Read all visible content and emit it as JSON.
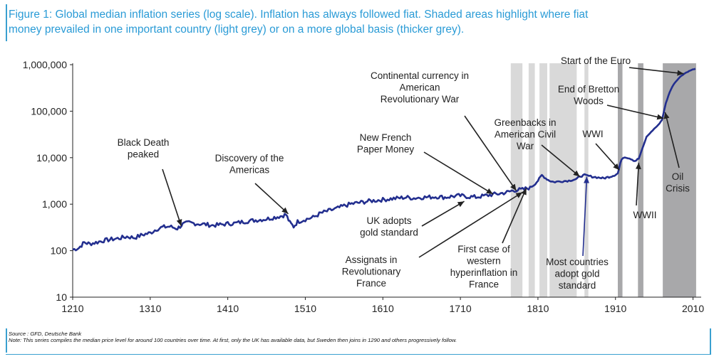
{
  "figure": {
    "title_line1": "Figure 1: Global median inflation series (log scale). Inflation has always followed fiat. Shaded areas highlight where fiat",
    "title_line2": "money prevailed in one important country (light grey) or on a more global basis (thicker grey).",
    "source": "Source : GFD, Deutsche Bank",
    "note": "Note: This series compiles the median price level for around 100 countries over time. At first, only the UK has available data, but Sweden then joins in 1290 and others progressively follow."
  },
  "colors": {
    "series": "#232f8f",
    "shade_light": "#d9d9d9",
    "shade_dark": "#a8a8aa",
    "title": "#2a9bd6",
    "rule": "#3aa0d0"
  },
  "chart_data": {
    "type": "line",
    "title": "",
    "xlabel": "",
    "ylabel": "",
    "xlim": [
      1210,
      2015
    ],
    "ylim": [
      10,
      1000000
    ],
    "yscale": "log",
    "grid": false,
    "x_ticks": [
      1210,
      1310,
      1410,
      1510,
      1610,
      1710,
      1810,
      1910,
      2010
    ],
    "y_ticks": [
      10,
      100,
      1000,
      10000,
      100000,
      1000000
    ],
    "y_tick_labels": [
      "10",
      "100",
      "1,000",
      "10,000",
      "100,000",
      "1,000,000"
    ],
    "shaded_periods": [
      {
        "start": 1775,
        "end": 1790,
        "shade": "light"
      },
      {
        "start": 1798,
        "end": 1806,
        "shade": "light"
      },
      {
        "start": 1812,
        "end": 1822,
        "shade": "light"
      },
      {
        "start": 1825,
        "end": 1860,
        "shade": "light"
      },
      {
        "start": 1870,
        "end": 1875,
        "shade": "light"
      },
      {
        "start": 1913,
        "end": 1919,
        "shade": "dark"
      },
      {
        "start": 1939,
        "end": 1946,
        "shade": "dark"
      },
      {
        "start": 1971,
        "end": 2014,
        "shade": "dark"
      }
    ],
    "series": [
      {
        "points": [
          [
            1210,
            105
          ],
          [
            1218,
            115
          ],
          [
            1225,
            150
          ],
          [
            1232,
            140
          ],
          [
            1240,
            150
          ],
          [
            1250,
            165
          ],
          [
            1260,
            175
          ],
          [
            1270,
            185
          ],
          [
            1280,
            200
          ],
          [
            1290,
            190
          ],
          [
            1300,
            220
          ],
          [
            1310,
            240
          ],
          [
            1318,
            290
          ],
          [
            1326,
            320
          ],
          [
            1335,
            330
          ],
          [
            1345,
            300
          ],
          [
            1352,
            370
          ],
          [
            1360,
            400
          ],
          [
            1370,
            380
          ],
          [
            1380,
            370
          ],
          [
            1390,
            350
          ],
          [
            1400,
            360
          ],
          [
            1410,
            380
          ],
          [
            1420,
            390
          ],
          [
            1430,
            420
          ],
          [
            1440,
            440
          ],
          [
            1450,
            460
          ],
          [
            1460,
            480
          ],
          [
            1470,
            520
          ],
          [
            1480,
            560
          ],
          [
            1485,
            600
          ],
          [
            1490,
            400
          ],
          [
            1495,
            330
          ],
          [
            1500,
            420
          ],
          [
            1510,
            470
          ],
          [
            1520,
            520
          ],
          [
            1530,
            640
          ],
          [
            1540,
            720
          ],
          [
            1550,
            800
          ],
          [
            1560,
            920
          ],
          [
            1570,
            1020
          ],
          [
            1580,
            1080
          ],
          [
            1590,
            1150
          ],
          [
            1600,
            1200
          ],
          [
            1610,
            1250
          ],
          [
            1620,
            1300
          ],
          [
            1630,
            1350
          ],
          [
            1640,
            1400
          ],
          [
            1650,
            1350
          ],
          [
            1660,
            1400
          ],
          [
            1670,
            1420
          ],
          [
            1680,
            1450
          ],
          [
            1690,
            1400
          ],
          [
            1700,
            1480
          ],
          [
            1710,
            1520
          ],
          [
            1720,
            1450
          ],
          [
            1730,
            1420
          ],
          [
            1740,
            1500
          ],
          [
            1750,
            1600
          ],
          [
            1760,
            1680
          ],
          [
            1770,
            1800
          ],
          [
            1775,
            1900
          ],
          [
            1780,
            2000
          ],
          [
            1790,
            2050
          ],
          [
            1800,
            2300
          ],
          [
            1805,
            2600
          ],
          [
            1810,
            3200
          ],
          [
            1815,
            4200
          ],
          [
            1820,
            3600
          ],
          [
            1825,
            3200
          ],
          [
            1830,
            3000
          ],
          [
            1840,
            3100
          ],
          [
            1850,
            3200
          ],
          [
            1860,
            3500
          ],
          [
            1865,
            4000
          ],
          [
            1870,
            4200
          ],
          [
            1880,
            3900
          ],
          [
            1890,
            3700
          ],
          [
            1895,
            3600
          ],
          [
            1900,
            3800
          ],
          [
            1905,
            4000
          ],
          [
            1910,
            4300
          ],
          [
            1913,
            4600
          ],
          [
            1918,
            9500
          ],
          [
            1922,
            10500
          ],
          [
            1930,
            9500
          ],
          [
            1935,
            8500
          ],
          [
            1940,
            9500
          ],
          [
            1946,
            18000
          ],
          [
            1950,
            28000
          ],
          [
            1960,
            42000
          ],
          [
            1965,
            50000
          ],
          [
            1970,
            65000
          ],
          [
            1975,
            150000
          ],
          [
            1980,
            260000
          ],
          [
            1985,
            380000
          ],
          [
            1990,
            480000
          ],
          [
            1995,
            580000
          ],
          [
            2000,
            660000
          ],
          [
            2005,
            730000
          ],
          [
            2010,
            790000
          ],
          [
            2013,
            820000
          ]
        ]
      }
    ],
    "annotations": [
      {
        "id": "black-death",
        "lines": [
          "Black Death",
          "peaked"
        ],
        "arrow_to": [
          1350,
          340
        ]
      },
      {
        "id": "americas",
        "lines": [
          "Discovery of the",
          "Americas"
        ],
        "arrow_to": [
          1488,
          620
        ]
      },
      {
        "id": "continental",
        "lines": [
          "Continental currency in",
          "American",
          "Revolutionary War"
        ],
        "arrow_to": [
          1782,
          1950
        ]
      },
      {
        "id": "new-french",
        "lines": [
          "New French",
          "Paper Money"
        ],
        "arrow_to": [
          1752,
          1650
        ]
      },
      {
        "id": "greenbacks",
        "lines": [
          "Greenbacks in",
          "American Civil",
          "War"
        ],
        "arrow_to": [
          1864,
          3900
        ]
      },
      {
        "id": "wwi",
        "lines": [
          "WWI"
        ],
        "arrow_to": [
          1915,
          5400
        ]
      },
      {
        "id": "bretton",
        "lines": [
          "End of Bretton",
          "Woods"
        ],
        "arrow_to": [
          1972,
          70000
        ]
      },
      {
        "id": "euro",
        "lines": [
          "Start of the Euro"
        ],
        "arrow_to": [
          1998,
          640000
        ]
      },
      {
        "id": "oil",
        "lines": [
          "Oil",
          "Crisis"
        ],
        "arrow_to": [
          1974,
          95000
        ]
      },
      {
        "id": "wwii",
        "lines": [
          "WWII"
        ],
        "arrow_to": [
          1940,
          7800
        ]
      },
      {
        "id": "uk-gold",
        "lines": [
          "UK adopts",
          "gold standard"
        ],
        "arrow_to": [
          1715,
          1150
        ]
      },
      {
        "id": "assignats",
        "lines": [
          "Assignats in",
          "Revolutionary",
          "France"
        ],
        "arrow_to": [
          1790,
          1800
        ]
      },
      {
        "id": "first-case",
        "lines": [
          "First case of",
          "western",
          "hyperinflation in",
          "France"
        ],
        "arrow_to": [
          1795,
          2200
        ]
      },
      {
        "id": "most-gold",
        "lines": [
          "Most countries",
          "adopt gold",
          "standard"
        ],
        "arrow_to": [
          1873,
          3900
        ]
      }
    ]
  }
}
